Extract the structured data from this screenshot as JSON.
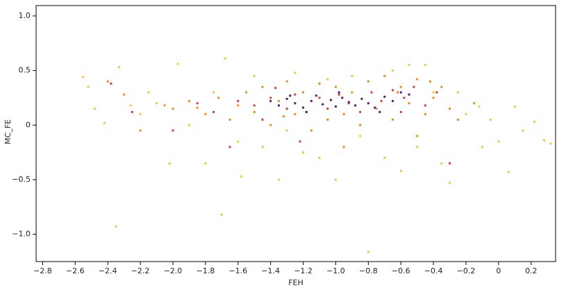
{
  "chart_data": {
    "type": "scatter",
    "x_label": "FEH",
    "y_label": "MC_FE",
    "xlim": [
      -2.84,
      0.35
    ],
    "ylim": [
      -1.25,
      1.095
    ],
    "xticks": [
      {
        "value": -2.8,
        "label": "−2.8"
      },
      {
        "value": -2.6,
        "label": "−2.6"
      },
      {
        "value": -2.4,
        "label": "−2.4"
      },
      {
        "value": -2.2,
        "label": "−2.2"
      },
      {
        "value": -2.0,
        "label": "−2.0"
      },
      {
        "value": -1.8,
        "label": "−1.8"
      },
      {
        "value": -1.6,
        "label": "−1.6"
      },
      {
        "value": -1.4,
        "label": "−1.4"
      },
      {
        "value": -1.2,
        "label": "−1.2"
      },
      {
        "value": -1.0,
        "label": "−1.0"
      },
      {
        "value": -0.8,
        "label": "−0.8"
      },
      {
        "value": -0.6,
        "label": "−0.6"
      },
      {
        "value": -0.4,
        "label": "−0.4"
      },
      {
        "value": -0.2,
        "label": "−0.2"
      },
      0,
      0.2
    ],
    "yticks": [
      {
        "value": 1.0,
        "label": "1.0"
      },
      0.5,
      0,
      {
        "value": -0.5,
        "label": "−0.5"
      },
      {
        "value": -1.0,
        "label": "−1.0"
      }
    ],
    "series": [
      {
        "color": "#f5c53c",
        "x": [
          -2.55,
          -2.52,
          -2.48,
          -2.33,
          -2.35,
          -2.42,
          -1.97,
          -2.02,
          -1.8,
          -1.7,
          -1.68,
          -1.58,
          -1.35,
          -1.45,
          -1.2,
          -1.0,
          -0.8,
          -0.6,
          -0.3,
          -0.1,
          0.0,
          0.06,
          0.15,
          0.22,
          0.28,
          0.32,
          -0.05,
          -0.2,
          -0.12,
          0.1,
          -0.55,
          -0.45,
          -0.9,
          -1.25,
          -1.5,
          -2.1,
          -2.2,
          -2.15,
          -1.9,
          -1.6,
          -1.1,
          -0.7,
          -0.5,
          -0.35,
          -0.85,
          -1.3,
          -0.4,
          -0.25,
          -2.26,
          -1.75,
          -0.65,
          -1.05
        ],
        "y": [
          0.44,
          0.35,
          0.15,
          0.53,
          -0.93,
          0.02,
          0.56,
          -0.35,
          -0.35,
          -0.82,
          0.61,
          -0.47,
          -0.5,
          -0.2,
          -0.25,
          -0.5,
          -1.16,
          -0.42,
          -0.53,
          -0.2,
          -0.15,
          -0.43,
          -0.05,
          0.03,
          -0.14,
          -0.17,
          0.05,
          0.1,
          0.17,
          0.17,
          0.55,
          0.55,
          0.45,
          0.48,
          0.45,
          0.2,
          0.1,
          0.3,
          0.0,
          -0.15,
          -0.3,
          -0.3,
          -0.2,
          -0.35,
          -0.1,
          -0.05,
          0.3,
          0.3,
          0.18,
          0.3,
          0.5,
          0.42
        ]
      },
      {
        "color": "#f08a1e",
        "x": [
          -2.4,
          -2.3,
          -2.2,
          -2.05,
          -1.9,
          -1.8,
          -1.72,
          -1.65,
          -1.55,
          -1.5,
          -1.45,
          -1.4,
          -1.35,
          -1.3,
          -1.25,
          -1.2,
          -1.15,
          -1.1,
          -1.05,
          -1.0,
          -0.95,
          -0.9,
          -0.85,
          -0.8,
          -0.75,
          -0.7,
          -0.65,
          -0.6,
          -0.55,
          -0.5,
          -0.45,
          -0.4,
          -0.35,
          -0.3,
          -0.25,
          -0.15,
          -0.5,
          -0.95,
          -1.6,
          -2.0,
          -1.85,
          -0.62,
          -0.42,
          -1.32
        ],
        "y": [
          0.4,
          0.28,
          -0.05,
          0.18,
          0.22,
          0.1,
          0.25,
          0.05,
          0.3,
          0.12,
          0.35,
          0.0,
          0.22,
          0.4,
          0.1,
          0.3,
          -0.05,
          0.38,
          0.05,
          0.35,
          0.1,
          0.3,
          0.0,
          0.4,
          0.15,
          0.45,
          0.05,
          0.35,
          0.2,
          0.42,
          0.1,
          0.25,
          0.35,
          0.15,
          0.05,
          0.2,
          -0.1,
          -0.2,
          0.18,
          0.15,
          0.16,
          0.3,
          0.4,
          0.08
        ]
      },
      {
        "color": "#cf3f3a",
        "x": [
          -2.38,
          -2.25,
          -2.0,
          -1.85,
          -1.75,
          -1.6,
          -1.5,
          -1.45,
          -1.4,
          -1.3,
          -1.25,
          -1.18,
          -1.1,
          -1.05,
          -0.98,
          -0.92,
          -0.85,
          -0.78,
          -0.72,
          -0.65,
          -0.58,
          -0.52,
          -0.45,
          -0.38,
          -0.3,
          -1.65,
          -1.37,
          -1.22,
          -0.6
        ],
        "y": [
          0.38,
          0.12,
          -0.05,
          0.2,
          0.12,
          0.22,
          0.18,
          0.05,
          0.25,
          0.15,
          0.28,
          0.12,
          0.25,
          0.15,
          0.28,
          0.2,
          0.12,
          0.3,
          0.22,
          0.32,
          0.25,
          0.35,
          0.18,
          0.3,
          -0.35,
          -0.2,
          0.34,
          -0.15,
          0.12
        ]
      },
      {
        "color": "#5b1a7c",
        "x": [
          -1.4,
          -1.35,
          -1.3,
          -1.25,
          -1.2,
          -1.15,
          -1.12,
          -1.08,
          -1.03,
          -1.0,
          -0.96,
          -0.92,
          -0.88,
          -0.84,
          -0.8,
          -0.76,
          -0.7,
          -0.65,
          -0.6,
          -0.55,
          -1.18,
          -1.28,
          -0.98,
          -0.73
        ],
        "y": [
          0.22,
          0.18,
          0.24,
          0.2,
          0.16,
          0.22,
          0.27,
          0.19,
          0.23,
          0.17,
          0.25,
          0.21,
          0.18,
          0.24,
          0.2,
          0.16,
          0.26,
          0.22,
          0.3,
          0.28,
          0.12,
          0.27,
          0.3,
          0.12
        ]
      }
    ]
  }
}
